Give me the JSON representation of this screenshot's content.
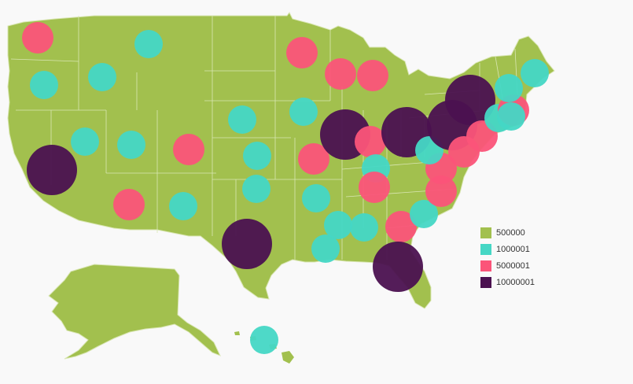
{
  "map": {
    "land_color": "#a2c04e",
    "border_color": "#d9e6b3",
    "background_color": "#f9f9f9"
  },
  "legend": {
    "items": [
      {
        "label": "500000",
        "color": "#a2c04e"
      },
      {
        "label": "1000001",
        "color": "#45d7c5"
      },
      {
        "label": "5000001",
        "color": "#fb5479"
      },
      {
        "label": "10000001",
        "color": "#4b1150"
      }
    ]
  },
  "bubbles": [
    {
      "state": "Washington",
      "category": 2
    },
    {
      "state": "Oregon",
      "category": 1
    },
    {
      "state": "Idaho",
      "category": 1
    },
    {
      "state": "Montana",
      "category": 1
    },
    {
      "state": "California",
      "category": 3
    },
    {
      "state": "Nevada",
      "category": 1
    },
    {
      "state": "Utah",
      "category": 1
    },
    {
      "state": "Arizona",
      "category": 2
    },
    {
      "state": "Colorado",
      "category": 2
    },
    {
      "state": "New Mexico",
      "category": 1
    },
    {
      "state": "Texas",
      "category": 3
    },
    {
      "state": "Oklahoma",
      "category": 1
    },
    {
      "state": "Kansas",
      "category": 1
    },
    {
      "state": "Nebraska",
      "category": 1
    },
    {
      "state": "Minnesota",
      "category": 2
    },
    {
      "state": "Iowa",
      "category": 1
    },
    {
      "state": "Missouri",
      "category": 2
    },
    {
      "state": "Arkansas",
      "category": 1
    },
    {
      "state": "Louisiana",
      "category": 1
    },
    {
      "state": "Mississippi",
      "category": 1
    },
    {
      "state": "Wisconsin",
      "category": 2
    },
    {
      "state": "Michigan",
      "category": 2
    },
    {
      "state": "Illinois",
      "category": 3
    },
    {
      "state": "Indiana",
      "category": 2
    },
    {
      "state": "Ohio",
      "category": 3
    },
    {
      "state": "Kentucky",
      "category": 1
    },
    {
      "state": "Tennessee",
      "category": 2
    },
    {
      "state": "Alabama",
      "category": 1
    },
    {
      "state": "Georgia",
      "category": 2
    },
    {
      "state": "Florida",
      "category": 3
    },
    {
      "state": "South Carolina",
      "category": 1
    },
    {
      "state": "North Carolina",
      "category": 2
    },
    {
      "state": "Virginia",
      "category": 2
    },
    {
      "state": "West Virginia",
      "category": 1
    },
    {
      "state": "Pennsylvania",
      "category": 3
    },
    {
      "state": "New York",
      "category": 3
    },
    {
      "state": "New Jersey",
      "category": 2
    },
    {
      "state": "Maryland",
      "category": 2
    },
    {
      "state": "Connecticut",
      "category": 1
    },
    {
      "state": "Massachusetts",
      "category": 2
    },
    {
      "state": "Rhode Island",
      "category": 1
    },
    {
      "state": "New Hampshire",
      "category": 1
    },
    {
      "state": "Maine",
      "category": 1
    },
    {
      "state": "Hawaii",
      "category": 1
    }
  ]
}
